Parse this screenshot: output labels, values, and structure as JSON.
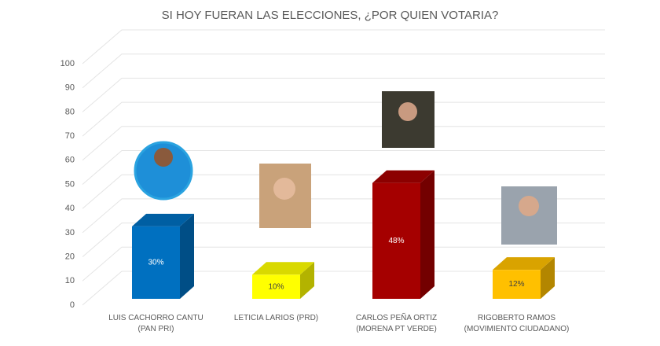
{
  "chart_data": {
    "type": "bar3d",
    "title": "SI HOY FUERAN LAS ELECCIONES, ¿POR QUIEN VOTARIA?",
    "categories": [
      "LUIS CACHORRO CANTU (PAN PRI)",
      "LETICIA LARIOS (PRD)",
      "CARLOS PEÑA ORTIZ (MORENA PT VERDE)",
      "RIGOBERTO RAMOS (MOVIMIENTO CIUDADANO)"
    ],
    "values": [
      30,
      10,
      48,
      12
    ],
    "value_labels": [
      "30%",
      "10%",
      "48%",
      "12%"
    ],
    "colors": [
      "#0070c0",
      "#ffff00",
      "#a50000",
      "#ffc000"
    ],
    "ylim": [
      0,
      100
    ],
    "yticks": [
      0,
      10,
      20,
      30,
      40,
      50,
      60,
      70,
      80,
      90,
      100
    ],
    "grid": true
  }
}
